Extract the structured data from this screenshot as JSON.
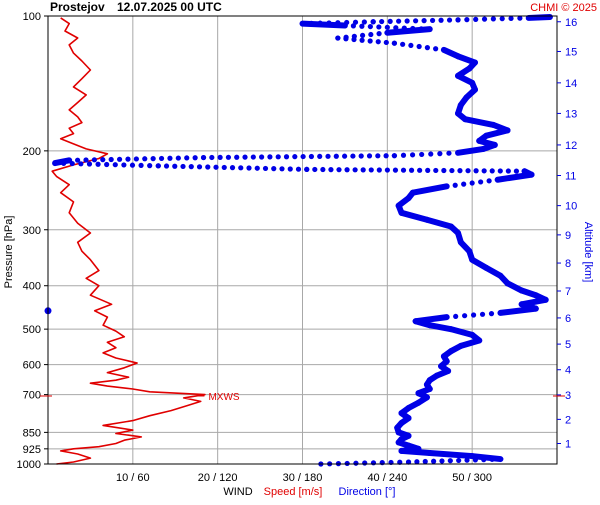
{
  "header": {
    "station": "Prostejov",
    "datetime": "12.07.2025 00 UTC",
    "credit": "CHMI © 2025"
  },
  "colors": {
    "speed": "#e00000",
    "direction": "#0000e6",
    "grid": "#a8a8a8",
    "axis": "#000000"
  },
  "chart_data": {
    "type": "line",
    "title": "Prostejov    12.07.2025 00 UTC",
    "y_axis": {
      "label": "Pressure [hPa]",
      "scale": "log",
      "range": [
        1000,
        100
      ],
      "ticks": [
        100,
        200,
        300,
        400,
        500,
        600,
        700,
        850,
        925,
        1000
      ]
    },
    "y2_axis": {
      "label": "Altitude [km]",
      "ticks": [
        {
          "km": 1,
          "hpa": 900
        },
        {
          "km": 2,
          "hpa": 795
        },
        {
          "km": 3,
          "hpa": 701
        },
        {
          "km": 4,
          "hpa": 616
        },
        {
          "km": 5,
          "hpa": 540
        },
        {
          "km": 6,
          "hpa": 472
        },
        {
          "km": 7,
          "hpa": 411
        },
        {
          "km": 8,
          "hpa": 356
        },
        {
          "km": 9,
          "hpa": 308
        },
        {
          "km": 10,
          "hpa": 265
        },
        {
          "km": 11,
          "hpa": 227
        },
        {
          "km": 12,
          "hpa": 194
        },
        {
          "km": 13,
          "hpa": 165
        },
        {
          "km": 14,
          "hpa": 141
        },
        {
          "km": 15,
          "hpa": 120
        },
        {
          "km": 16,
          "hpa": 103
        }
      ]
    },
    "x_axis": {
      "label_prefix": "WIND",
      "label_speed": "Speed [m/s]",
      "label_direction": "Direction [°]",
      "speed_range": [
        0,
        60
      ],
      "direction_range": [
        0,
        360
      ],
      "ticks": [
        {
          "speed": 10,
          "dir": 60,
          "label": "10 / 60"
        },
        {
          "speed": 20,
          "dir": 120,
          "label": "20 / 120"
        },
        {
          "speed": 30,
          "dir": 180,
          "label": "30 / 180"
        },
        {
          "speed": 40,
          "dir": 240,
          "label": "40 / 240"
        },
        {
          "speed": 50,
          "dir": 300,
          "label": "50 / 300"
        }
      ]
    },
    "annotation": {
      "text": "MXWS",
      "hpa": 705,
      "speed": 17.5
    },
    "series": [
      {
        "name": "Speed [m/s]",
        "color": "#e00000",
        "points": [
          [
            1000,
            1.0
          ],
          [
            990,
            3.0
          ],
          [
            970,
            5.0
          ],
          [
            950,
            3.5
          ],
          [
            935,
            1.5
          ],
          [
            925,
            3.0
          ],
          [
            915,
            6.0
          ],
          [
            900,
            8.0
          ],
          [
            885,
            9.0
          ],
          [
            870,
            11.0
          ],
          [
            855,
            8.0
          ],
          [
            840,
            10.0
          ],
          [
            820,
            6.5
          ],
          [
            800,
            10.0
          ],
          [
            780,
            12.0
          ],
          [
            760,
            14.5
          ],
          [
            740,
            16.5
          ],
          [
            725,
            18.0
          ],
          [
            712,
            16.0
          ],
          [
            700,
            18.5
          ],
          [
            690,
            12.0
          ],
          [
            680,
            10.0
          ],
          [
            670,
            7.0
          ],
          [
            660,
            5.0
          ],
          [
            650,
            8.0
          ],
          [
            640,
            9.5
          ],
          [
            625,
            7.0
          ],
          [
            610,
            9.0
          ],
          [
            595,
            10.5
          ],
          [
            580,
            8.0
          ],
          [
            565,
            6.5
          ],
          [
            550,
            8.0
          ],
          [
            535,
            7.0
          ],
          [
            520,
            9.0
          ],
          [
            505,
            8.0
          ],
          [
            490,
            6.5
          ],
          [
            470,
            7.0
          ],
          [
            455,
            5.5
          ],
          [
            440,
            7.5
          ],
          [
            420,
            5.0
          ],
          [
            400,
            6.0
          ],
          [
            385,
            4.5
          ],
          [
            370,
            6.0
          ],
          [
            350,
            5.0
          ],
          [
            335,
            4.0
          ],
          [
            320,
            3.5
          ],
          [
            305,
            5.0
          ],
          [
            290,
            3.5
          ],
          [
            275,
            2.5
          ],
          [
            260,
            3.0
          ],
          [
            248,
            1.5
          ],
          [
            238,
            2.5
          ],
          [
            228,
            1.0
          ],
          [
            222,
            0.5
          ],
          [
            215,
            3.0
          ],
          [
            208,
            6.0
          ],
          [
            203,
            7.0
          ],
          [
            198,
            4.5
          ],
          [
            193,
            3.0
          ],
          [
            188,
            1.5
          ],
          [
            183,
            3.0
          ],
          [
            178,
            2.5
          ],
          [
            173,
            4.0
          ],
          [
            168,
            3.5
          ],
          [
            162,
            2.5
          ],
          [
            156,
            3.5
          ],
          [
            150,
            4.5
          ],
          [
            144,
            3.0
          ],
          [
            138,
            4.0
          ],
          [
            132,
            5.0
          ],
          [
            126,
            4.0
          ],
          [
            121,
            3.0
          ],
          [
            116,
            2.5
          ],
          [
            112,
            3.5
          ],
          [
            108,
            2.0
          ],
          [
            104,
            2.5
          ],
          [
            101,
            1.5
          ]
        ]
      },
      {
        "name": "Direction [°]",
        "color": "#0000e6",
        "points": [
          [
            1000,
            193
          ],
          [
            990,
            255
          ],
          [
            975,
            320
          ],
          [
            960,
            300
          ],
          [
            945,
            270
          ],
          [
            935,
            250
          ],
          [
            925,
            262
          ],
          [
            910,
            255
          ],
          [
            895,
            248
          ],
          [
            880,
            250
          ],
          [
            865,
            255
          ],
          [
            850,
            248
          ],
          [
            830,
            247
          ],
          [
            810,
            250
          ],
          [
            790,
            255
          ],
          [
            770,
            250
          ],
          [
            750,
            255
          ],
          [
            730,
            262
          ],
          [
            710,
            268
          ],
          [
            695,
            262
          ],
          [
            680,
            270
          ],
          [
            665,
            268
          ],
          [
            650,
            270
          ],
          [
            635,
            275
          ],
          [
            620,
            283
          ],
          [
            605,
            278
          ],
          [
            590,
            282
          ],
          [
            575,
            280
          ],
          [
            560,
            285
          ],
          [
            545,
            292
          ],
          [
            530,
            305
          ],
          [
            515,
            300
          ],
          [
            500,
            285
          ],
          [
            490,
            270
          ],
          [
            480,
            260
          ],
          [
            470,
            282
          ],
          [
            460,
            320
          ],
          [
            450,
            345
          ],
          [
            440,
            335
          ],
          [
            430,
            352
          ],
          [
            420,
            345
          ],
          [
            410,
            335
          ],
          [
            395,
            325
          ],
          [
            380,
            320
          ],
          [
            365,
            310
          ],
          [
            350,
            300
          ],
          [
            335,
            298
          ],
          [
            320,
            292
          ],
          [
            305,
            290
          ],
          [
            295,
            285
          ],
          [
            285,
            268
          ],
          [
            275,
            250
          ],
          [
            265,
            248
          ],
          [
            255,
            255
          ],
          [
            248,
            258
          ],
          [
            240,
            282
          ],
          [
            232,
            318
          ],
          [
            226,
            342
          ],
          [
            222,
            337
          ],
          [
            220,
            183
          ],
          [
            216,
            78
          ],
          [
            213,
            5
          ],
          [
            210,
            15
          ],
          [
            207,
            110
          ],
          [
            205,
            245
          ],
          [
            202,
            290
          ],
          [
            198,
            308
          ],
          [
            194,
            316
          ],
          [
            190,
            305
          ],
          [
            185,
            310
          ],
          [
            180,
            325
          ],
          [
            175,
            315
          ],
          [
            170,
            295
          ],
          [
            165,
            290
          ],
          [
            158,
            292
          ],
          [
            152,
            296
          ],
          [
            146,
            302
          ],
          [
            141,
            300
          ],
          [
            136,
            290
          ],
          [
            131,
            298
          ],
          [
            127,
            302
          ],
          [
            123,
            290
          ],
          [
            119,
            280
          ],
          [
            115,
            245
          ],
          [
            112,
            205
          ],
          [
            109,
            240
          ],
          [
            107,
            270
          ],
          [
            105,
            210
          ],
          [
            104,
            180
          ],
          [
            103,
            230
          ],
          [
            102,
            290
          ],
          [
            101,
            340
          ],
          [
            100.5,
            355
          ]
        ]
      }
    ]
  }
}
